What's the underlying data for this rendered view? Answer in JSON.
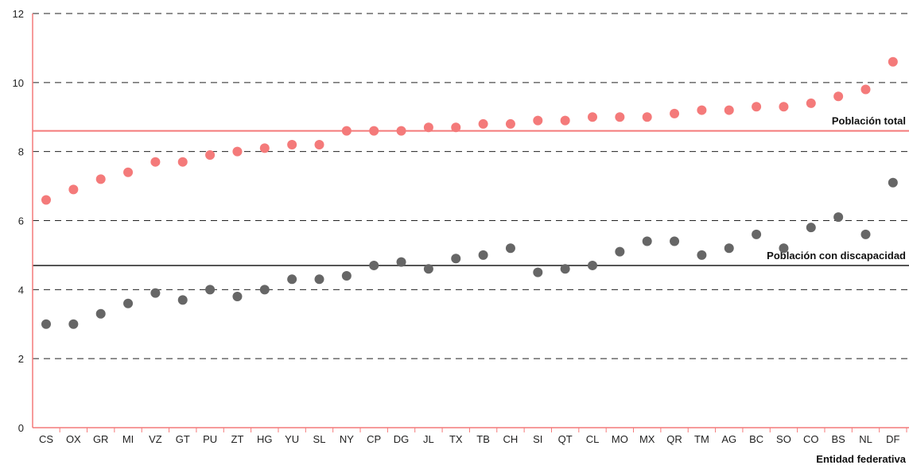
{
  "chart_data": {
    "type": "scatter",
    "title": "",
    "xlabel": "Entidad federativa",
    "ylabel": "",
    "ylim": [
      0,
      12
    ],
    "yticks": [
      0,
      2,
      4,
      6,
      8,
      10,
      12
    ],
    "grid": "horizontal-dashed",
    "categories": [
      "CS",
      "OX",
      "GR",
      "MI",
      "VZ",
      "GT",
      "PU",
      "ZT",
      "HG",
      "YU",
      "SL",
      "NY",
      "CP",
      "DG",
      "JL",
      "TX",
      "TB",
      "CH",
      "SI",
      "QT",
      "CL",
      "MO",
      "MX",
      "QR",
      "TM",
      "AG",
      "BC",
      "SO",
      "CO",
      "BS",
      "NL",
      "DF"
    ],
    "series": [
      {
        "color": "#f47a7a",
        "values": [
          6.6,
          6.9,
          7.2,
          7.4,
          7.7,
          7.7,
          7.9,
          8.0,
          8.1,
          8.2,
          8.2,
          8.6,
          8.6,
          8.6,
          8.7,
          8.7,
          8.8,
          8.8,
          8.9,
          8.9,
          9.0,
          9.0,
          9.0,
          9.1,
          9.2,
          9.2,
          9.3,
          9.3,
          9.4,
          9.6,
          9.8,
          10.6
        ]
      },
      {
        "color": "#666666",
        "values": [
          3.0,
          3.0,
          3.3,
          3.6,
          3.9,
          3.7,
          4.0,
          3.8,
          4.0,
          4.3,
          4.3,
          4.4,
          4.7,
          4.8,
          4.6,
          4.9,
          5.0,
          5.2,
          4.5,
          4.6,
          4.7,
          5.1,
          5.4,
          5.4,
          5.0,
          5.2,
          5.6,
          5.2,
          5.8,
          6.1,
          5.6,
          7.1
        ]
      }
    ],
    "reference_lines": [
      {
        "label": "Población total",
        "value": 8.6,
        "color": "#f47a7a"
      },
      {
        "label": "Población con discapacidad",
        "value": 4.7,
        "color": "#555555"
      }
    ],
    "colors": {
      "axis": "#f47a7a",
      "grid": "#222222"
    }
  }
}
